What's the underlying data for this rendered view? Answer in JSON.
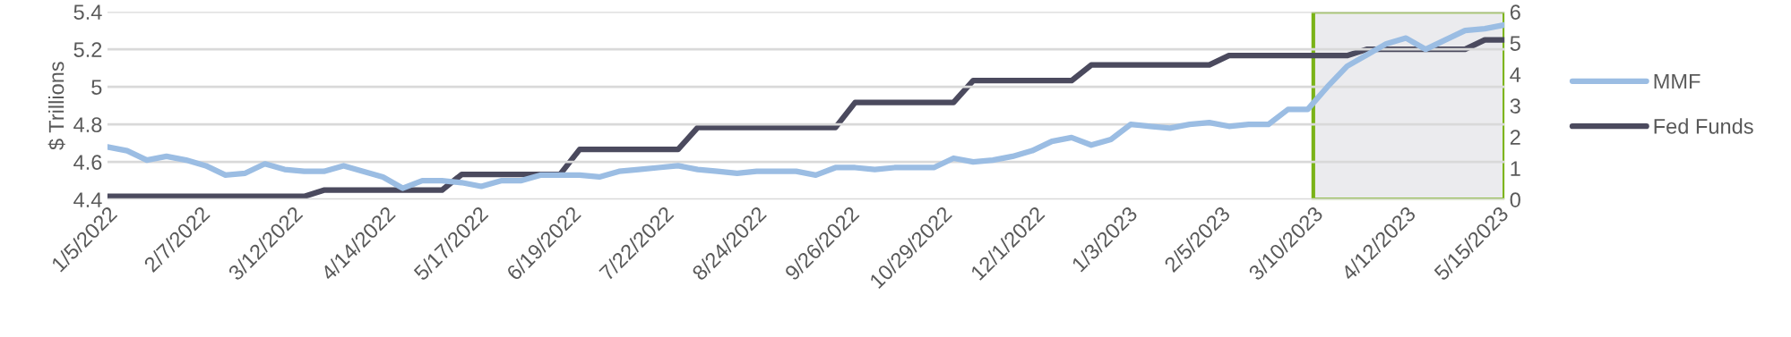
{
  "chart_data": {
    "type": "line",
    "ylabel": "$ Trillions",
    "x": [
      "2022-01-05",
      "2022-01-12",
      "2022-01-19",
      "2022-01-26",
      "2022-02-02",
      "2022-02-09",
      "2022-02-16",
      "2022-02-23",
      "2022-03-02",
      "2022-03-09",
      "2022-03-16",
      "2022-03-23",
      "2022-03-30",
      "2022-04-06",
      "2022-04-13",
      "2022-04-20",
      "2022-04-27",
      "2022-05-04",
      "2022-05-11",
      "2022-05-18",
      "2022-05-25",
      "2022-06-01",
      "2022-06-08",
      "2022-06-15",
      "2022-06-22",
      "2022-06-29",
      "2022-07-06",
      "2022-07-13",
      "2022-07-20",
      "2022-07-27",
      "2022-08-03",
      "2022-08-10",
      "2022-08-17",
      "2022-08-24",
      "2022-08-31",
      "2022-09-07",
      "2022-09-14",
      "2022-09-21",
      "2022-09-28",
      "2022-10-05",
      "2022-10-12",
      "2022-10-19",
      "2022-10-26",
      "2022-11-02",
      "2022-11-09",
      "2022-11-16",
      "2022-11-23",
      "2022-11-30",
      "2022-12-07",
      "2022-12-14",
      "2022-12-21",
      "2022-12-28",
      "2023-01-04",
      "2023-01-11",
      "2023-01-18",
      "2023-01-25",
      "2023-02-01",
      "2023-02-08",
      "2023-02-15",
      "2023-02-22",
      "2023-03-01",
      "2023-03-08",
      "2023-03-15",
      "2023-03-22",
      "2023-03-29",
      "2023-04-05",
      "2023-04-12",
      "2023-04-19",
      "2023-04-26",
      "2023-05-03",
      "2023-05-10",
      "2023-05-17"
    ],
    "series": [
      {
        "name": "MMF",
        "color": "#9bbde3",
        "values": [
          4.68,
          4.66,
          4.61,
          4.63,
          4.61,
          4.58,
          4.53,
          4.54,
          4.59,
          4.56,
          4.55,
          4.55,
          4.58,
          4.55,
          4.52,
          4.46,
          4.5,
          4.5,
          4.49,
          4.47,
          4.5,
          4.5,
          4.53,
          4.53,
          4.53,
          4.52,
          4.55,
          4.56,
          4.57,
          4.58,
          4.56,
          4.55,
          4.54,
          4.55,
          4.55,
          4.55,
          4.53,
          4.57,
          4.57,
          4.56,
          4.57,
          4.57,
          4.57,
          4.62,
          4.6,
          4.61,
          4.63,
          4.66,
          4.71,
          4.73,
          4.69,
          4.72,
          4.8,
          4.79,
          4.78,
          4.8,
          4.81,
          4.79,
          4.8,
          4.8,
          4.88,
          4.88,
          5.0,
          5.11,
          5.17,
          5.23,
          5.26,
          5.2,
          5.25,
          5.3,
          5.31,
          5.33
        ]
      },
      {
        "name": "Fed Funds",
        "color": "#4b4a5e",
        "axis": "y2",
        "values": [
          0.1,
          0.1,
          0.1,
          0.1,
          0.1,
          0.1,
          0.1,
          0.1,
          0.1,
          0.1,
          0.1,
          0.3,
          0.3,
          0.3,
          0.3,
          0.3,
          0.3,
          0.3,
          0.8,
          0.8,
          0.8,
          0.8,
          0.8,
          0.8,
          1.6,
          1.6,
          1.6,
          1.6,
          1.6,
          1.6,
          2.3,
          2.3,
          2.3,
          2.3,
          2.3,
          2.3,
          2.3,
          2.3,
          3.1,
          3.1,
          3.1,
          3.1,
          3.1,
          3.1,
          3.8,
          3.8,
          3.8,
          3.8,
          3.8,
          3.8,
          4.3,
          4.3,
          4.3,
          4.3,
          4.3,
          4.3,
          4.3,
          4.6,
          4.6,
          4.6,
          4.6,
          4.6,
          4.6,
          4.6,
          4.8,
          4.8,
          4.8,
          4.8,
          4.8,
          4.8,
          5.1,
          5.1
        ]
      }
    ],
    "xlim": [
      "2022-01-05",
      "2023-05-17"
    ],
    "xticks": [
      {
        "value": "2022-01-05",
        "label": "1/5/2022"
      },
      {
        "value": "2022-02-07",
        "label": "2/7/2022"
      },
      {
        "value": "2022-03-12",
        "label": "3/12/2022"
      },
      {
        "value": "2022-04-14",
        "label": "4/14/2022"
      },
      {
        "value": "2022-05-17",
        "label": "5/17/2022"
      },
      {
        "value": "2022-06-19",
        "label": "6/19/2022"
      },
      {
        "value": "2022-07-22",
        "label": "7/22/2022"
      },
      {
        "value": "2022-08-24",
        "label": "8/24/2022"
      },
      {
        "value": "2022-09-26",
        "label": "9/26/2022"
      },
      {
        "value": "2022-10-29",
        "label": "10/29/2022"
      },
      {
        "value": "2022-12-01",
        "label": "12/1/2022"
      },
      {
        "value": "2023-01-03",
        "label": "1/3/2023"
      },
      {
        "value": "2023-02-05",
        "label": "2/5/2023"
      },
      {
        "value": "2023-03-10",
        "label": "3/10/2023"
      },
      {
        "value": "2023-04-12",
        "label": "4/12/2023"
      },
      {
        "value": "2023-05-15",
        "label": "5/15/2023"
      }
    ],
    "ylim": [
      4.4,
      5.4
    ],
    "yticks": [
      4.4,
      {
        "value": 4.6,
        "label": "4.6"
      },
      {
        "value": 4.8,
        "label": "4.8"
      },
      5,
      {
        "value": 5.2,
        "label": "5.2"
      },
      5.4
    ],
    "y2lim": [
      0,
      6
    ],
    "y2ticks": [
      0,
      1,
      2,
      3,
      4,
      5,
      6
    ],
    "bands": [
      {
        "axis": "x",
        "from": "2023-03-10",
        "to": "2023-05-17",
        "color": "#ebebee"
      }
    ],
    "grid": "y",
    "legend": "right",
    "marker": "none",
    "line_style": "solid"
  }
}
